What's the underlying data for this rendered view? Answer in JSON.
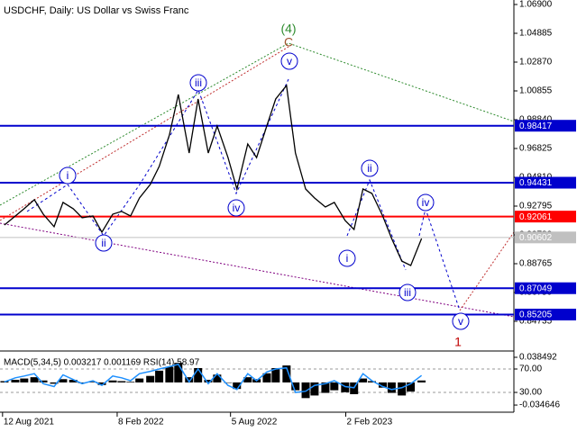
{
  "chart_data": [
    {
      "type": "line",
      "title": "USDCHF, Daily:  US Dollar vs Swiss Franc",
      "color": "#000000",
      "x": [
        "2021-08-15",
        "2021-09-01",
        "2021-09-15",
        "2021-10-01",
        "2021-10-15",
        "2021-11-01",
        "2021-11-15",
        "2021-12-01",
        "2021-12-15",
        "2022-01-01",
        "2022-01-15",
        "2022-02-01",
        "2022-02-15",
        "2022-03-01",
        "2022-03-15",
        "2022-04-01",
        "2022-04-15",
        "2022-05-01",
        "2022-05-15",
        "2022-06-01",
        "2022-06-15",
        "2022-07-01",
        "2022-07-15",
        "2022-08-01",
        "2022-08-15",
        "2022-09-01",
        "2022-09-15",
        "2022-10-01",
        "2022-10-15",
        "2022-11-01",
        "2022-11-15",
        "2022-12-01",
        "2022-12-15",
        "2023-01-01",
        "2023-01-15",
        "2023-02-01",
        "2023-02-15",
        "2023-03-01",
        "2023-03-15",
        "2023-04-01",
        "2023-04-15",
        "2023-05-01",
        "2023-05-15",
        "2023-06-01"
      ],
      "values": [
        0.9147,
        0.921,
        0.9261,
        0.9324,
        0.9223,
        0.9135,
        0.9305,
        0.9261,
        0.9198,
        0.921,
        0.9097,
        0.9223,
        0.9242,
        0.921,
        0.9336,
        0.9431,
        0.9557,
        0.9777,
        1.006,
        0.9651,
        1.0029,
        0.9651,
        0.984,
        0.9619,
        0.9399,
        0.9714,
        0.9619,
        0.984,
        1.0029,
        1.0123,
        0.9651,
        0.9399,
        0.9336,
        0.9273,
        0.9305,
        0.9179,
        0.9116,
        0.9399,
        0.9368,
        0.921,
        0.9053,
        0.8895,
        0.8864,
        0.9053
      ],
      "xlim": [
        "2021-08-08",
        "2023-10-24"
      ],
      "xticks": [
        {
          "value": "2021-08-12",
          "label": "12 Aug 2021"
        },
        {
          "value": "2022-02-08",
          "label": "8 Feb 2022"
        },
        {
          "value": "2022-08-05",
          "label": "5 Aug 2022"
        },
        {
          "value": "2023-02-02",
          "label": "2 Feb 2023"
        }
      ],
      "ylim": [
        0.82656,
        1.07215
      ],
      "yticks": [
        {
          "value": 1.069,
          "label": "1.06900"
        },
        {
          "value": 1.04885,
          "label": "1.04885"
        },
        {
          "value": 1.0287,
          "label": "1.02870"
        },
        {
          "value": 1.00855,
          "label": "1.00855"
        },
        {
          "value": 0.9884,
          "label": "0.98840"
        },
        {
          "value": 0.96825,
          "label": "0.96825"
        },
        {
          "value": 0.9481,
          "label": "0.94810"
        },
        {
          "value": 0.92795,
          "label": "0.92795"
        },
        {
          "value": 0.9078,
          "label": "0.90780"
        },
        {
          "value": 0.88765,
          "label": "0.88765"
        },
        {
          "value": 0.8675,
          "label": "0.86750"
        },
        {
          "value": 0.84735,
          "label": "0.84735"
        }
      ],
      "levels": [
        {
          "value": 0.98417,
          "color": "#0000cd"
        },
        {
          "value": 0.94431,
          "color": "#0000cd"
        },
        {
          "value": 0.92061,
          "color": "#ff0000"
        },
        {
          "value": 0.90602,
          "color": "#c0c0c0"
        },
        {
          "value": 0.87049,
          "color": "#0000cd"
        },
        {
          "value": 0.85205,
          "color": "#0000cd"
        }
      ],
      "wave_labels": [
        "i",
        "ii",
        "iii",
        "iv",
        "v",
        "i",
        "ii",
        "iii",
        "iv",
        "v"
      ],
      "wave_color": "#0000cd",
      "annotations": [
        {
          "text": "(4)",
          "color": "#2e8b2e"
        },
        {
          "text": "C",
          "color": "#a0522d"
        },
        {
          "text": "1",
          "color": "#c00000"
        }
      ]
    },
    {
      "type": "indicator",
      "title": "MACD(5,34,5) 0.003217 0.001169 RSI(14) 58.97",
      "series": [
        {
          "color": "#000000",
          "values": [
            0.002,
            0.004,
            0.006,
            0.008,
            0.003,
            -0.002,
            0.005,
            0.004,
            -0.001,
            0.001,
            -0.004,
            0.003,
            0.002,
            0.001,
            0.006,
            0.01,
            0.018,
            0.024,
            0.03,
            0.008,
            0.022,
            0.004,
            0.012,
            0.0,
            -0.01,
            0.008,
            0.005,
            0.014,
            0.022,
            0.026,
            -0.012,
            -0.024,
            -0.02,
            -0.016,
            -0.012,
            -0.015,
            -0.018,
            0.006,
            0.002,
            -0.008,
            -0.016,
            -0.02,
            -0.014,
            0.003
          ]
        },
        {
          "color": "#1e90ff",
          "axis": "y2",
          "values": [
            48,
            55,
            58,
            62,
            45,
            40,
            60,
            52,
            45,
            50,
            42,
            58,
            55,
            50,
            62,
            66,
            70,
            74,
            78,
            48,
            70,
            45,
            62,
            42,
            35,
            62,
            50,
            65,
            70,
            72,
            30,
            32,
            42,
            45,
            50,
            40,
            38,
            62,
            50,
            40,
            35,
            38,
            45,
            59
          ]
        }
      ],
      "ylim": [
        -0.0456,
        0.0454
      ],
      "yticks": [
        0.038492,
        -0.034646
      ],
      "y2lim": [
        -3.8,
        97.7
      ],
      "y2ticks": [
        {
          "value": 70,
          "label": "70.00"
        },
        {
          "value": 30,
          "label": "30.00"
        }
      ]
    }
  ]
}
